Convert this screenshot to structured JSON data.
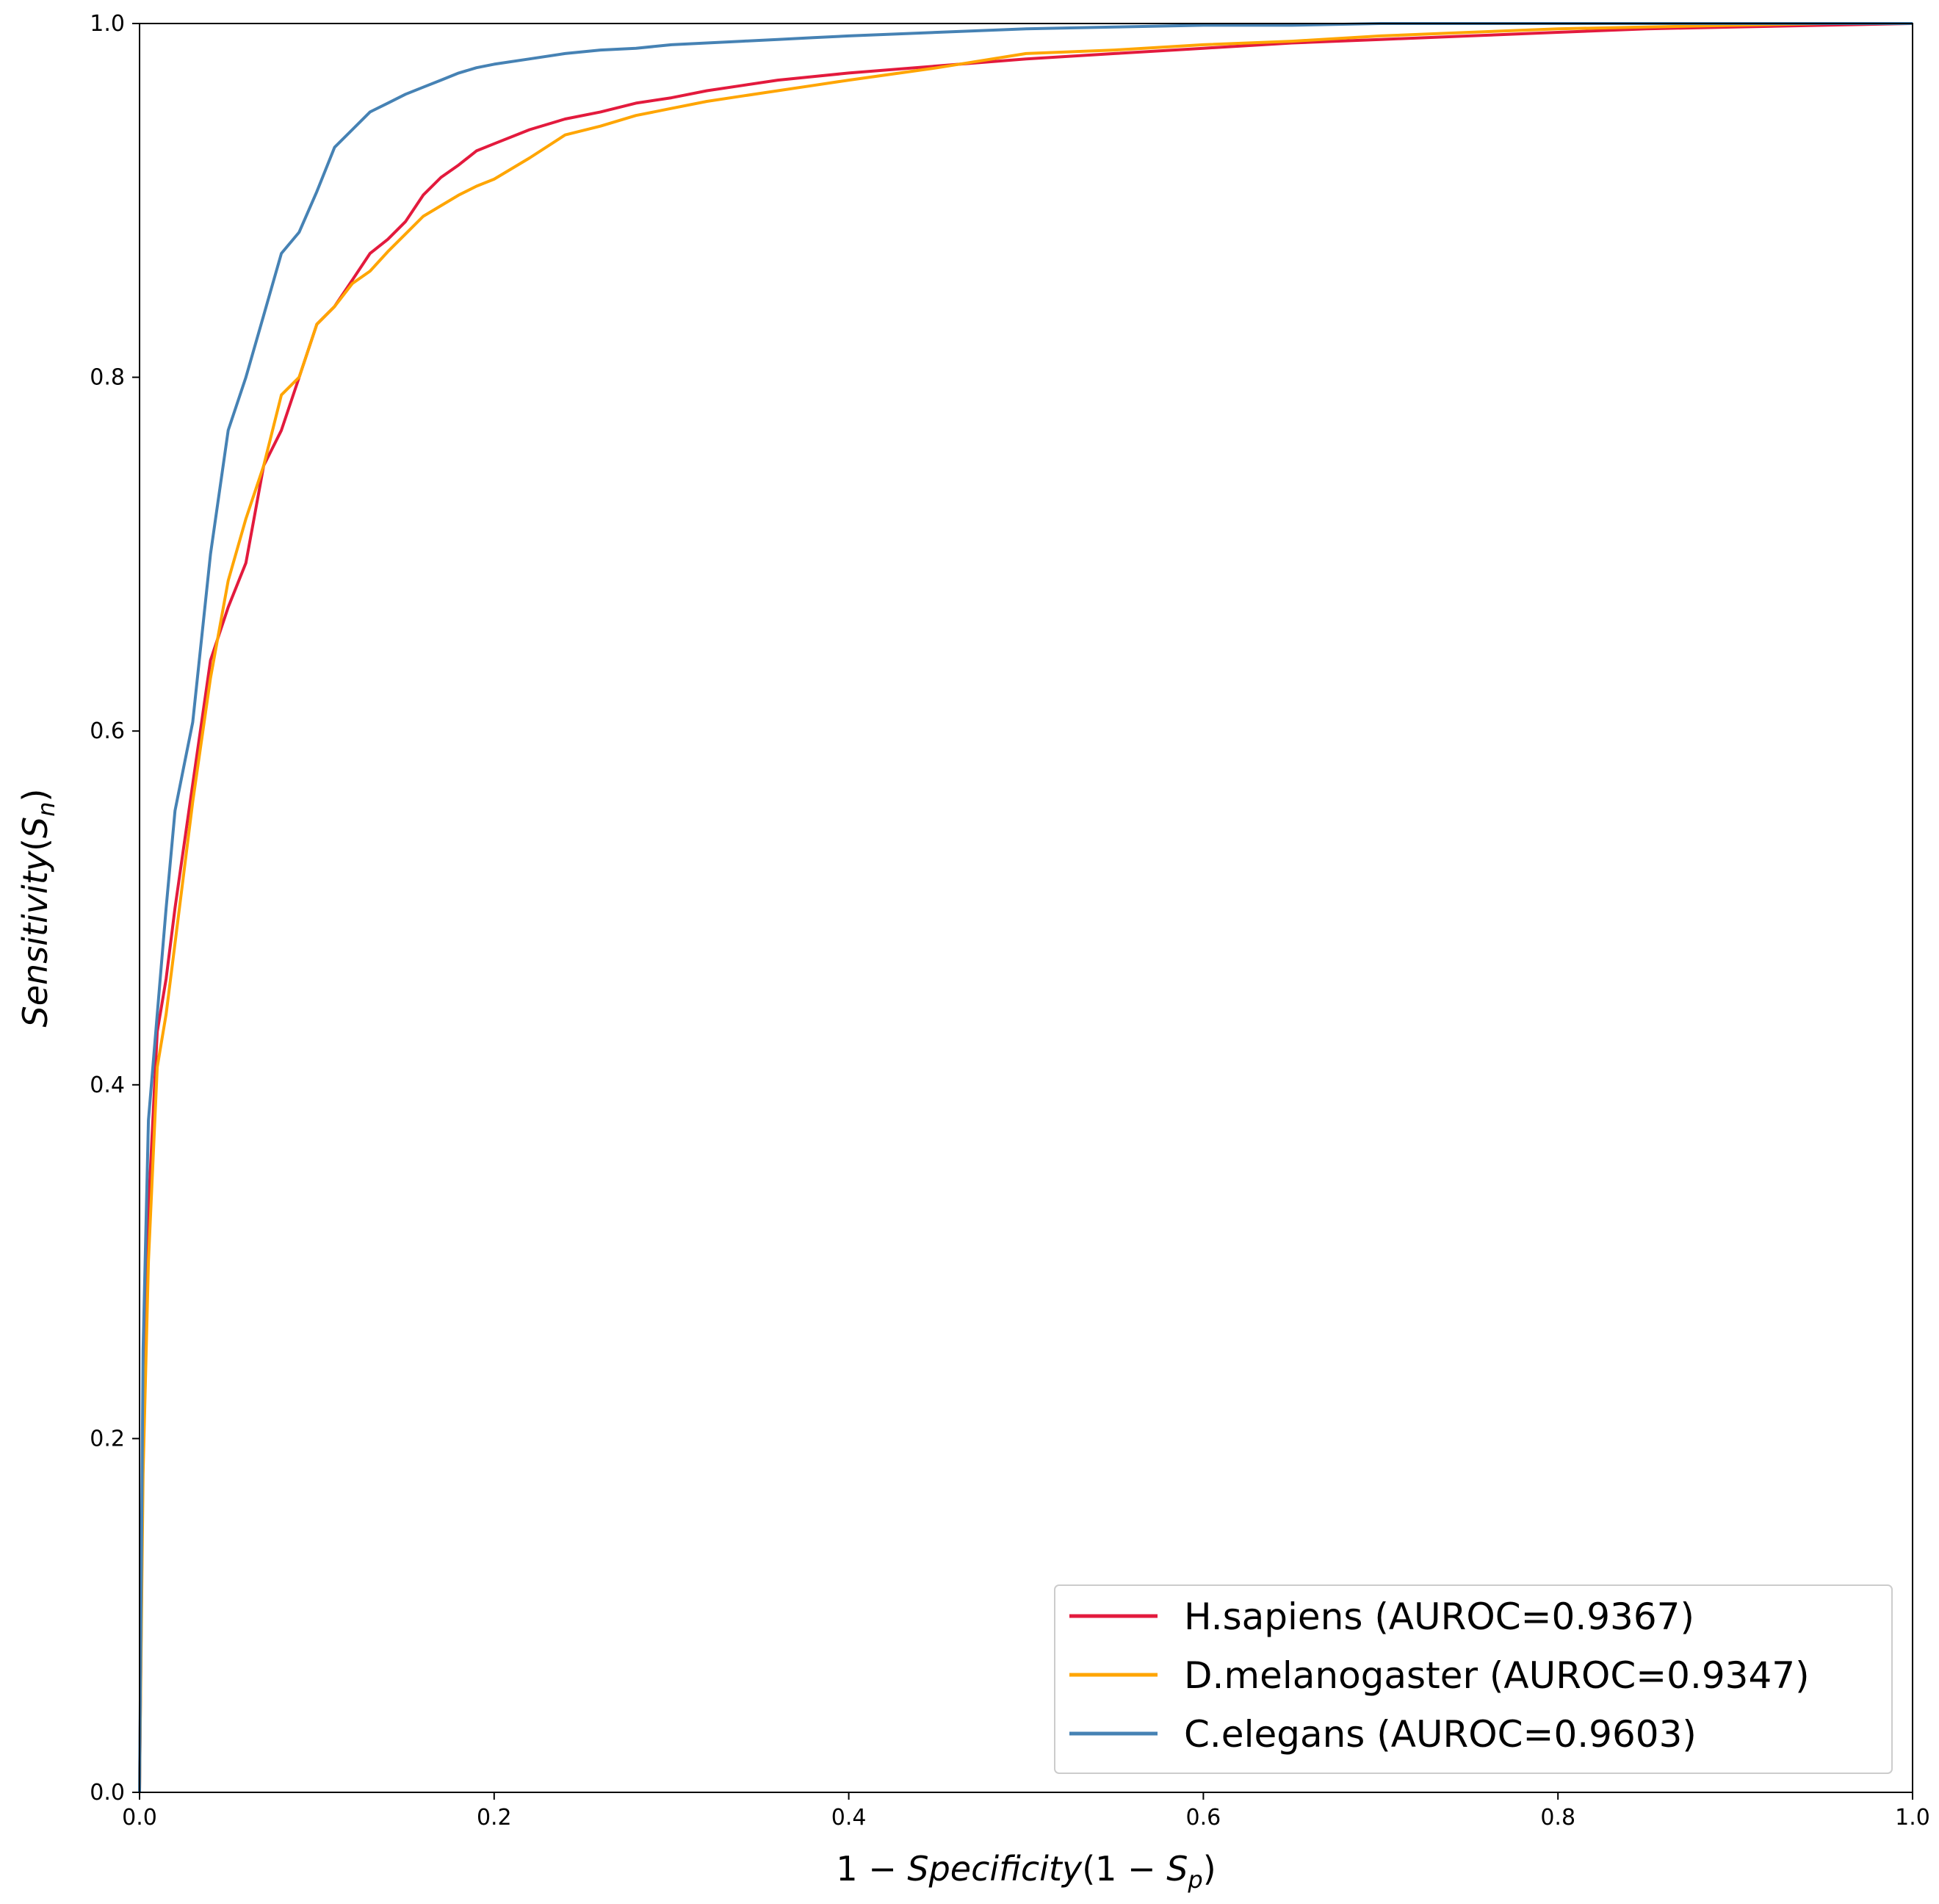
{
  "chart_data": {
    "type": "line",
    "title": "",
    "xlabel": {
      "prefix": "1 − ",
      "main": "Specificity",
      "paren_open": "(1 − ",
      "sym": "S",
      "sub": "p",
      "paren_close": ")"
    },
    "ylabel": {
      "main": "Sensitivity",
      "paren_open": "(",
      "sym": "S",
      "sub": "n",
      "paren_close": ")"
    },
    "xlim": [
      0.0,
      1.0
    ],
    "ylim": [
      0.0,
      1.0
    ],
    "x_ticks": [
      "0.0",
      "0.2",
      "0.4",
      "0.6",
      "0.8",
      "1.0"
    ],
    "y_ticks": [
      "0.0",
      "0.2",
      "0.4",
      "0.6",
      "0.8",
      "1.0"
    ],
    "grid": false,
    "legend_position": "lower-right",
    "series": [
      {
        "name": "H.sapiens (AUROC=0.9367)",
        "color": "#e31a3d",
        "x": [
          0,
          0.002,
          0.005,
          0.01,
          0.015,
          0.02,
          0.03,
          0.04,
          0.05,
          0.06,
          0.07,
          0.08,
          0.09,
          0.1,
          0.11,
          0.12,
          0.13,
          0.14,
          0.15,
          0.16,
          0.17,
          0.18,
          0.19,
          0.2,
          0.22,
          0.24,
          0.26,
          0.28,
          0.3,
          0.32,
          0.34,
          0.36,
          0.38,
          0.4,
          0.45,
          0.5,
          0.55,
          0.6,
          0.65,
          0.7,
          0.75,
          0.8,
          0.85,
          0.9,
          0.95,
          1.0
        ],
        "y": [
          0,
          0.2,
          0.33,
          0.43,
          0.46,
          0.5,
          0.57,
          0.64,
          0.67,
          0.695,
          0.75,
          0.77,
          0.8,
          0.83,
          0.84,
          0.855,
          0.87,
          0.878,
          0.888,
          0.903,
          0.913,
          0.92,
          0.928,
          0.932,
          0.94,
          0.946,
          0.95,
          0.955,
          0.958,
          0.962,
          0.965,
          0.968,
          0.97,
          0.972,
          0.976,
          0.98,
          0.983,
          0.986,
          0.989,
          0.991,
          0.993,
          0.995,
          0.997,
          0.998,
          0.999,
          1.0
        ]
      },
      {
        "name": "D.melanogaster (AUROC=0.9347)",
        "color": "#ffa500",
        "x": [
          0,
          0.002,
          0.005,
          0.01,
          0.015,
          0.02,
          0.03,
          0.04,
          0.05,
          0.06,
          0.07,
          0.08,
          0.09,
          0.1,
          0.11,
          0.12,
          0.13,
          0.14,
          0.15,
          0.16,
          0.17,
          0.18,
          0.19,
          0.2,
          0.22,
          0.24,
          0.26,
          0.28,
          0.3,
          0.32,
          0.34,
          0.36,
          0.38,
          0.4,
          0.45,
          0.5,
          0.55,
          0.6,
          0.65,
          0.7,
          0.75,
          0.8,
          0.85,
          0.9,
          0.95,
          1.0
        ],
        "y": [
          0,
          0.18,
          0.3,
          0.41,
          0.44,
          0.48,
          0.56,
          0.63,
          0.685,
          0.72,
          0.75,
          0.79,
          0.8,
          0.83,
          0.84,
          0.853,
          0.86,
          0.871,
          0.881,
          0.891,
          0.897,
          0.903,
          0.908,
          0.912,
          0.924,
          0.937,
          0.942,
          0.948,
          0.952,
          0.956,
          0.959,
          0.962,
          0.965,
          0.968,
          0.975,
          0.983,
          0.985,
          0.988,
          0.99,
          0.993,
          0.995,
          0.997,
          0.998,
          0.999,
          1.0,
          1.0
        ]
      },
      {
        "name": "C.elegans (AUROC=0.9603)",
        "color": "#4682b4",
        "x": [
          0,
          0.002,
          0.005,
          0.01,
          0.015,
          0.02,
          0.025,
          0.03,
          0.04,
          0.05,
          0.06,
          0.07,
          0.08,
          0.09,
          0.1,
          0.11,
          0.12,
          0.13,
          0.14,
          0.15,
          0.16,
          0.17,
          0.18,
          0.19,
          0.2,
          0.22,
          0.24,
          0.26,
          0.28,
          0.3,
          0.32,
          0.34,
          0.36,
          0.38,
          0.4,
          0.45,
          0.5,
          0.55,
          0.6,
          0.65,
          0.7,
          0.75,
          0.8,
          0.85,
          0.9,
          0.95,
          1.0
        ],
        "y": [
          0,
          0.25,
          0.38,
          0.44,
          0.5,
          0.555,
          0.58,
          0.605,
          0.7,
          0.77,
          0.8,
          0.835,
          0.87,
          0.882,
          0.905,
          0.93,
          0.94,
          0.95,
          0.955,
          0.96,
          0.964,
          0.968,
          0.972,
          0.975,
          0.977,
          0.98,
          0.983,
          0.985,
          0.986,
          0.988,
          0.989,
          0.99,
          0.991,
          0.992,
          0.993,
          0.995,
          0.997,
          0.998,
          0.999,
          0.999,
          1.0,
          1.0,
          1.0,
          1.0,
          1.0,
          1.0,
          1.0
        ]
      }
    ]
  }
}
